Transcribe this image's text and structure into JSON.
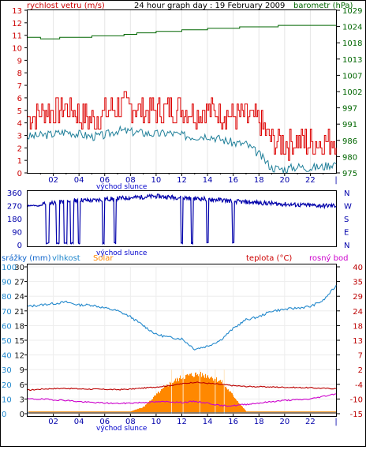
{
  "colors": {
    "wind": "#cc0000",
    "wind_gust": "#dd0000",
    "baro": "#006600",
    "dir": "#0000aa",
    "hum": "#2288cc",
    "solar": "#ff8800",
    "temp": "#bb0000",
    "dew": "#cc00cc",
    "rain": "#1166cc",
    "axis": "#0000aa",
    "sunrise": "#0000cc"
  },
  "chart_data": [
    {
      "type": "line",
      "title": "24 hour graph day : 19 February 2009",
      "left_label": "rychlost vetru (m/s)",
      "right_label": "barometr (hPa)",
      "left_ticks": [
        "0",
        "1",
        "2",
        "3",
        "4",
        "5",
        "6",
        "7",
        "8",
        "9",
        "10",
        "11",
        "12",
        "13"
      ],
      "right_ticks": [
        "975",
        "980",
        "986",
        "991",
        "997",
        "1002",
        "1007",
        "1013",
        "1018",
        "1024",
        "1029"
      ],
      "x_ticks": [
        "02",
        "04",
        "06",
        "08",
        "10",
        "12",
        "14",
        "16",
        "18",
        "20",
        "22"
      ],
      "sunrise_label": "východ slunce",
      "ylim_left": [
        0,
        13
      ],
      "ylim_right": [
        975,
        1029
      ],
      "series": [
        {
          "key": "gust",
          "x": [
            0,
            1,
            2,
            3,
            4,
            5,
            6,
            7,
            8,
            9,
            10,
            11,
            12,
            13,
            14,
            15,
            16,
            17,
            18,
            19,
            20,
            21,
            22,
            23,
            24
          ],
          "values": [
            4.5,
            4.8,
            5.0,
            5.2,
            4.6,
            4.2,
            4.8,
            5.2,
            5.4,
            5.0,
            4.9,
            5.2,
            5.1,
            4.9,
            5.0,
            4.8,
            4.6,
            4.4,
            4.0,
            2.5,
            2.3,
            2.6,
            2.4,
            2.5,
            2.8
          ]
        },
        {
          "key": "speed",
          "x": [
            0,
            1,
            2,
            3,
            4,
            5,
            6,
            7,
            8,
            9,
            10,
            11,
            12,
            13,
            14,
            15,
            16,
            17,
            18,
            19,
            20,
            21,
            22,
            23,
            24
          ],
          "values": [
            2.9,
            3.0,
            3.1,
            3.3,
            3.1,
            2.9,
            3.0,
            3.4,
            3.3,
            3.2,
            3.1,
            3.2,
            3.0,
            2.9,
            3.0,
            2.7,
            2.4,
            2.3,
            1.5,
            0.4,
            0.3,
            0.5,
            0.4,
            0.5,
            0.8
          ]
        },
        {
          "key": "pressure",
          "x": [
            0,
            1,
            2,
            3,
            4,
            5,
            6,
            7,
            8,
            9,
            10,
            11,
            12,
            13,
            14,
            15,
            16,
            17,
            18,
            19,
            20,
            21,
            22,
            23,
            24
          ],
          "values": [
            1020,
            1019.5,
            1019.5,
            1020,
            1020,
            1020.3,
            1020.5,
            1020.7,
            1021,
            1021.5,
            1021.8,
            1022,
            1022.3,
            1022.5,
            1022.8,
            1023,
            1023.2,
            1023.4,
            1023.5,
            1023.7,
            1023.8,
            1024,
            1024,
            1024.2,
            1024.2
          ]
        }
      ]
    },
    {
      "type": "line",
      "left_ticks": [
        "360",
        "270",
        "180",
        "90",
        "0"
      ],
      "right_ticks": [
        "N",
        "W",
        "S",
        "E",
        "N"
      ],
      "x_ticks": [
        "02",
        "04",
        "06",
        "08",
        "10",
        "12",
        "14",
        "16",
        "18",
        "20",
        "22"
      ],
      "sunrise_label": "východ slunce",
      "ylim": [
        0,
        360
      ],
      "series": [
        {
          "key": "direction",
          "x": [
            0,
            1,
            2,
            3,
            4,
            5,
            6,
            7,
            8,
            9,
            10,
            11,
            12,
            13,
            14,
            15,
            16,
            17,
            18,
            19,
            20,
            21,
            22,
            23,
            24
          ],
          "values": [
            280,
            285,
            290,
            300,
            310,
            305,
            315,
            320,
            325,
            330,
            335,
            330,
            325,
            320,
            315,
            310,
            300,
            295,
            290,
            285,
            280,
            275,
            272,
            270,
            270
          ]
        }
      ]
    },
    {
      "type": "line",
      "labels": {
        "rain": "srážky (mm)",
        "hum": "vlhkost",
        "solar": "Solar",
        "temp": "teplota (°C)",
        "dew": "rosný bod"
      },
      "hum_ticks": [
        "0",
        "10",
        "20",
        "30",
        "40",
        "50",
        "60",
        "70",
        "80",
        "90",
        "100"
      ],
      "rain_ticks": [
        "0",
        "3",
        "6",
        "9",
        "12",
        "15",
        "18",
        "21",
        "24",
        "27",
        "30"
      ],
      "temp_ticks": [
        "-15",
        "-10",
        "-4",
        "2",
        "7",
        "13",
        "18",
        "24",
        "29",
        "35",
        "40"
      ],
      "x_ticks": [
        "02",
        "04",
        "06",
        "08",
        "10",
        "12",
        "14",
        "16",
        "18",
        "20",
        "22"
      ],
      "sunrise_label": "východ slunce",
      "ylim_hum": [
        0,
        100
      ],
      "ylim_temp": [
        -15,
        40
      ],
      "series": [
        {
          "key": "humidity",
          "x": [
            0,
            1,
            2,
            3,
            4,
            5,
            6,
            7,
            8,
            9,
            10,
            11,
            12,
            13,
            14,
            15,
            16,
            17,
            18,
            19,
            20,
            21,
            22,
            23,
            24
          ],
          "values": [
            73,
            74,
            75,
            76,
            74,
            74,
            72,
            70,
            66,
            60,
            54,
            52,
            51,
            44,
            46,
            50,
            58,
            64,
            66,
            70,
            71,
            72,
            73,
            77,
            87
          ]
        },
        {
          "key": "temperature",
          "x": [
            0,
            1,
            2,
            3,
            4,
            5,
            6,
            7,
            8,
            9,
            10,
            11,
            12,
            13,
            14,
            15,
            16,
            17,
            18,
            19,
            20,
            21,
            22,
            23,
            24
          ],
          "values": [
            -6.2,
            -5.8,
            -5.6,
            -5.5,
            -5.7,
            -5.8,
            -5.9,
            -6.0,
            -5.8,
            -5.4,
            -5.0,
            -4.5,
            -3.8,
            -3.2,
            -3.6,
            -4.0,
            -4.5,
            -4.8,
            -4.9,
            -5.0,
            -5.1,
            -5.2,
            -5.3,
            -5.5,
            -5.6
          ]
        },
        {
          "key": "dewpoint",
          "x": [
            0,
            1,
            2,
            3,
            4,
            5,
            6,
            7,
            8,
            9,
            10,
            11,
            12,
            13,
            14,
            15,
            16,
            17,
            18,
            19,
            20,
            21,
            22,
            23,
            24
          ],
          "values": [
            -9.5,
            -9.5,
            -9.8,
            -10.0,
            -10.5,
            -10.8,
            -11.0,
            -11.2,
            -11.0,
            -10.8,
            -10.6,
            -10.5,
            -10.8,
            -10.4,
            -11.0,
            -12.0,
            -12.0,
            -11.5,
            -11.0,
            -10.5,
            -10.0,
            -9.8,
            -9.5,
            -8.5,
            -7.5
          ]
        },
        {
          "key": "solar",
          "x": [
            0,
            1,
            2,
            3,
            4,
            5,
            6,
            7,
            8,
            9,
            10,
            11,
            12,
            13,
            14,
            15,
            16,
            17,
            18,
            19,
            20,
            21,
            22,
            23,
            24
          ],
          "values": [
            1.5,
            1.5,
            1.5,
            1.5,
            1.5,
            1.5,
            1.5,
            1.5,
            1.5,
            5,
            14,
            22,
            27,
            29,
            28,
            24,
            13,
            1.5,
            1.5,
            1.5,
            1.5,
            1.5,
            1.5,
            1.5,
            1.5
          ]
        }
      ]
    }
  ]
}
